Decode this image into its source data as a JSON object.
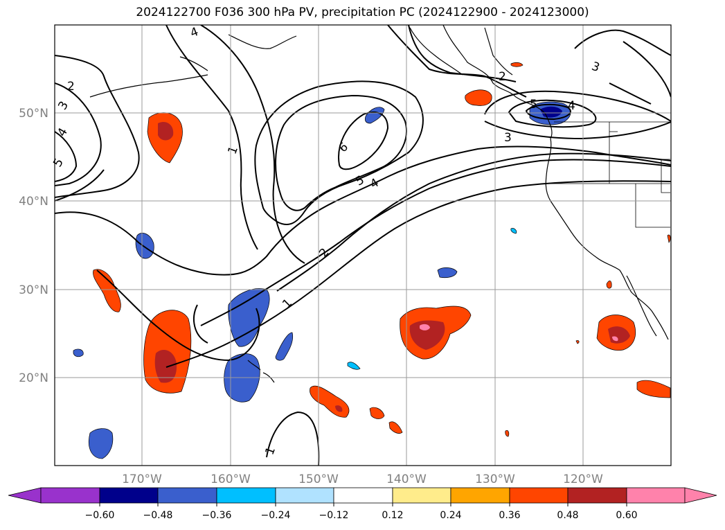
{
  "title": "2024122700 F036 300 hPa PV, precipitation PC (2024122900 - 2024123000)",
  "map": {
    "lat_labels": [
      "50°N",
      "40°N",
      "30°N",
      "20°N"
    ],
    "lon_labels": [
      "170°W",
      "160°W",
      "150°W",
      "140°W",
      "130°W",
      "120°W"
    ],
    "grid": true,
    "contour_labels": [
      "1",
      "1",
      "1",
      "2",
      "2",
      "2",
      "3",
      "3",
      "3",
      "4",
      "4",
      "4",
      "4",
      "5",
      "5",
      "5",
      "6"
    ]
  },
  "colorbar": {
    "ticks": [
      "−0.60",
      "−0.48",
      "−0.36",
      "−0.24",
      "−0.12",
      "0.12",
      "0.24",
      "0.36",
      "0.48",
      "0.60"
    ],
    "colors": [
      "#9932cc",
      "#00008b",
      "#3a5fcd",
      "#00bfff",
      "#b0e2ff",
      "#ffffff",
      "#ffec8b",
      "#ffa500",
      "#ff4500",
      "#b22222",
      "#ff82ab"
    ],
    "extend": "both"
  }
}
